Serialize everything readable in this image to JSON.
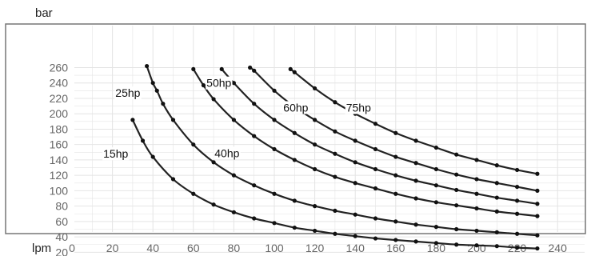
{
  "chart_data": {
    "type": "line",
    "title": "",
    "xlabel": "lpm",
    "ylabel": "bar",
    "xlim": [
      0,
      240
    ],
    "ylim": [
      10,
      265
    ],
    "x_ticks": [
      "0",
      "20",
      "40",
      "60",
      "80",
      "100",
      "120",
      "140",
      "160",
      "180",
      "200",
      "220",
      "240"
    ],
    "y_ticks": [
      "20",
      "40",
      "60",
      "80",
      "100",
      "120",
      "140",
      "160",
      "180",
      "200",
      "220",
      "240",
      "260"
    ],
    "grid": true,
    "line_color": "#222222",
    "marker_color": "#111111",
    "grid_color": "#e4e4e4",
    "border_color": "#777777",
    "series": [
      {
        "name": "15hp",
        "label_pos": [
          21,
          148
        ],
        "x": [
          30,
          35,
          40,
          50,
          60,
          70,
          80,
          90,
          100,
          110,
          120,
          130,
          140,
          150,
          160,
          170,
          180,
          190,
          200,
          210,
          220,
          230
        ],
        "y": [
          192,
          165,
          144,
          115,
          96,
          82,
          72,
          64,
          58,
          52,
          48,
          44,
          41,
          38,
          36,
          34,
          32,
          30,
          29,
          28,
          26,
          25
        ]
      },
      {
        "name": "25hp",
        "label_pos": [
          27,
          227
        ],
        "x": [
          37,
          40,
          42,
          45,
          50,
          60,
          70,
          80,
          90,
          100,
          110,
          120,
          130,
          140,
          150,
          160,
          170,
          180,
          190,
          200,
          210,
          220,
          230
        ],
        "y": [
          262,
          240,
          230,
          213,
          192,
          160,
          137,
          120,
          107,
          96,
          87,
          80,
          74,
          69,
          64,
          60,
          56,
          53,
          50,
          48,
          46,
          44,
          42
        ]
      },
      {
        "name": "40hp",
        "label_pos": [
          76,
          149
        ],
        "x": [
          60,
          65,
          70,
          80,
          90,
          100,
          110,
          120,
          130,
          140,
          150,
          160,
          170,
          180,
          190,
          200,
          210,
          220,
          230
        ],
        "y": [
          258,
          237,
          219,
          192,
          171,
          154,
          140,
          128,
          118,
          110,
          103,
          96,
          90,
          85,
          81,
          77,
          73,
          70,
          67
        ]
      },
      {
        "name": "50hp",
        "label_pos": [
          72,
          240
        ],
        "x": [
          74,
          80,
          90,
          100,
          110,
          120,
          130,
          140,
          150,
          160,
          170,
          180,
          190,
          200,
          210,
          220,
          230
        ],
        "y": [
          258,
          240,
          213,
          192,
          175,
          160,
          148,
          137,
          128,
          120,
          113,
          107,
          101,
          96,
          91,
          87,
          83
        ]
      },
      {
        "name": "60hp",
        "label_pos": [
          110,
          208
        ],
        "x": [
          88,
          90,
          100,
          110,
          120,
          130,
          140,
          150,
          160,
          170,
          180,
          190,
          200,
          210,
          220,
          230
        ],
        "y": [
          260,
          256,
          230,
          209,
          192,
          177,
          165,
          154,
          144,
          136,
          128,
          121,
          115,
          110,
          105,
          100
        ]
      },
      {
        "name": "75hp",
        "label_pos": [
          141,
          208
        ],
        "x": [
          108,
          110,
          120,
          130,
          140,
          150,
          160,
          170,
          180,
          190,
          200,
          210,
          220,
          230
        ],
        "y": [
          258,
          254,
          233,
          215,
          200,
          187,
          175,
          165,
          156,
          147,
          140,
          133,
          127,
          122
        ]
      }
    ]
  }
}
